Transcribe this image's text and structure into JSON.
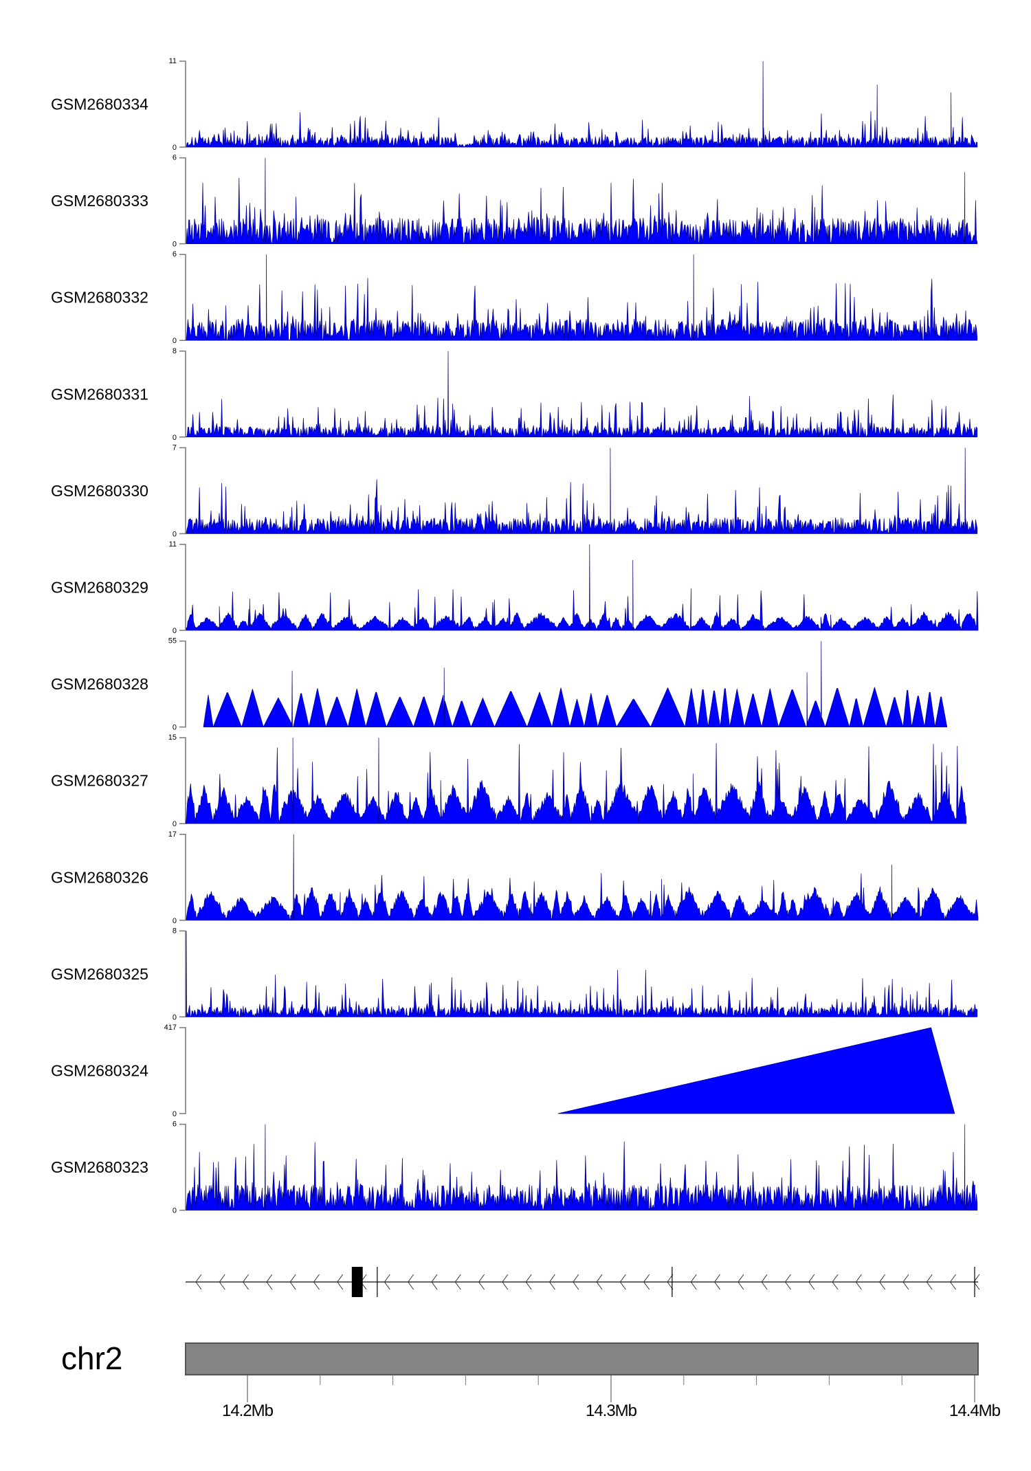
{
  "chart_data": {
    "type": "area",
    "title": "",
    "chromosome": "chr2",
    "xlim_mb": [
      14.183,
      14.401
    ],
    "x_ticks": [
      "14.2Mb",
      "14.3Mb",
      "14.4Mb"
    ],
    "x_tick_values": [
      14.2,
      14.3,
      14.4
    ],
    "minor_tick_step_mb": 0.02,
    "colors": {
      "fill": "#0000ff",
      "stroke": "#00008b",
      "chromosome": "#848484"
    },
    "tracks": [
      {
        "name": "GSM2680334",
        "ymin": 0,
        "ymax": 11,
        "style": "dense",
        "base": 0.12,
        "spike": 0.35,
        "peaks": [
          [
            14.3418,
            11
          ],
          [
            14.3732,
            8
          ],
          [
            14.3935,
            7
          ]
        ],
        "gap_mb": [
          [
            14.2574,
            14.2618
          ]
        ]
      },
      {
        "name": "GSM2680333",
        "ymin": 0,
        "ymax": 6,
        "style": "dense",
        "base": 0.3,
        "spike": 0.7,
        "peaks": [
          [
            14.2049,
            6
          ],
          [
            14.3973,
            5
          ]
        ]
      },
      {
        "name": "GSM2680332",
        "ymin": 0,
        "ymax": 6,
        "style": "dense",
        "base": 0.25,
        "spike": 0.8,
        "peaks": [
          [
            14.2052,
            6
          ],
          [
            14.3227,
            6
          ]
        ]
      },
      {
        "name": "GSM2680331",
        "ymin": 0,
        "ymax": 8,
        "style": "dense",
        "base": 0.12,
        "spike": 0.45,
        "peaks": [
          [
            14.2552,
            8
          ]
        ]
      },
      {
        "name": "GSM2680330",
        "ymin": 0,
        "ymax": 7,
        "style": "dense",
        "base": 0.18,
        "spike": 0.6,
        "peaks": [
          [
            14.2998,
            7
          ],
          [
            14.3974,
            7
          ]
        ]
      },
      {
        "name": "GSM2680329",
        "ymin": 0,
        "ymax": 11,
        "style": "tri",
        "base": 0.2,
        "spike": 0.5,
        "peaks": [
          [
            14.2941,
            11
          ],
          [
            14.306,
            9
          ]
        ]
      },
      {
        "name": "GSM2680328",
        "ymin": 0,
        "ymax": 55,
        "style": "tri",
        "base": 0.55,
        "spike": 0.0,
        "range_mb": [
          14.1879,
          14.3924
        ],
        "peaks": [
          [
            14.2541,
            38
          ],
          [
            14.3578,
            55
          ],
          [
            14.3539,
            35
          ],
          [
            14.2123,
            36
          ]
        ]
      },
      {
        "name": "GSM2680327",
        "ymin": 0,
        "ymax": 15,
        "style": "tri",
        "base": 0.45,
        "spike": 0.95,
        "range_mb": [
          14.183,
          14.3977
        ],
        "peaks": [
          [
            14.2361,
            15
          ],
          [
            14.2125,
            15
          ]
        ]
      },
      {
        "name": "GSM2680326",
        "ymin": 0,
        "ymax": 17,
        "style": "tri",
        "base": 0.35,
        "spike": 0.55,
        "peaks": [
          [
            14.2127,
            17
          ],
          [
            14.3772,
            11
          ]
        ]
      },
      {
        "name": "GSM2680325",
        "ymin": 0,
        "ymax": 8,
        "style": "dense",
        "base": 0.12,
        "spike": 0.5,
        "peaks": [
          [
            14.1832,
            8
          ]
        ]
      },
      {
        "name": "GSM2680324",
        "ymin": 0,
        "ymax": 417,
        "style": "polygon",
        "points_mb": [
          [
            14.2854,
            0
          ],
          [
            14.388,
            417
          ],
          [
            14.3945,
            0
          ]
        ]
      },
      {
        "name": "GSM2680323",
        "ymin": 0,
        "ymax": 6,
        "style": "dense",
        "base": 0.3,
        "spike": 0.8,
        "peaks": [
          [
            14.2049,
            6
          ],
          [
            14.3973,
            6
          ]
        ]
      }
    ],
    "gene": {
      "strand": "-",
      "exons_mb": [
        [
          14.2287,
          14.2317
        ]
      ],
      "boundaries_mb": [
        14.2357,
        14.3168,
        14.4
      ]
    }
  }
}
